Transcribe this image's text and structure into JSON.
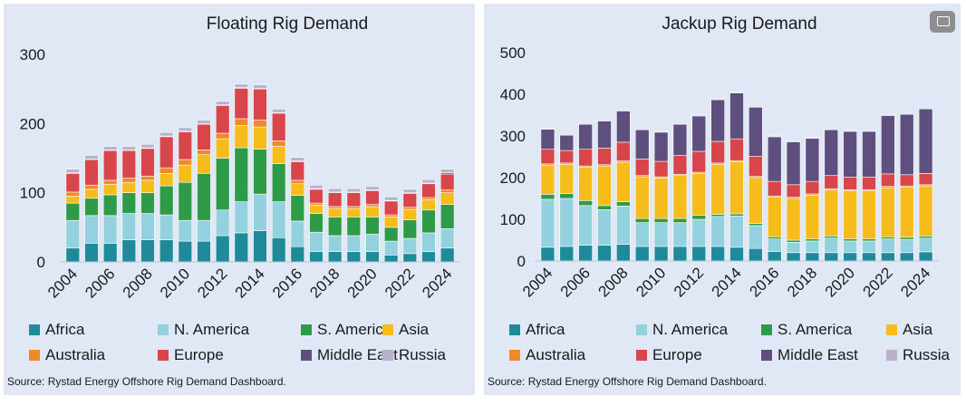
{
  "chart_data": [
    {
      "type": "bar",
      "stacked": true,
      "title": "Floating Rig Demand",
      "source": "Source: Rystad Energy Offshore Rig Demand Dashboard.",
      "categories": [
        "2004",
        "2005",
        "2006",
        "2007",
        "2008",
        "2009",
        "2010",
        "2011",
        "2012",
        "2013",
        "2014",
        "2015",
        "2016",
        "2017",
        "2018",
        "2019",
        "2020",
        "2021",
        "2022",
        "2023",
        "2024"
      ],
      "x_tick_labels": [
        "2004",
        "2006",
        "2008",
        "2010",
        "2012",
        "2014",
        "2016",
        "2018",
        "2020",
        "2022",
        "2024"
      ],
      "ylim": [
        0,
        300
      ],
      "yticks": [
        0,
        100,
        200,
        300
      ],
      "legend_position": "bottom",
      "series": [
        {
          "name": "Africa",
          "color": "#1f8a99",
          "values": [
            20,
            27,
            27,
            32,
            32,
            32,
            30,
            30,
            38,
            42,
            45,
            35,
            22,
            15,
            15,
            15,
            15,
            10,
            12,
            15,
            20
          ]
        },
        {
          "name": "N. America",
          "color": "#94d1de",
          "values": [
            40,
            40,
            40,
            38,
            38,
            36,
            30,
            30,
            37,
            45,
            53,
            52,
            37,
            28,
            23,
            23,
            25,
            20,
            22,
            27,
            28
          ]
        },
        {
          "name": "S. America",
          "color": "#2e9b48",
          "values": [
            25,
            25,
            30,
            30,
            30,
            42,
            55,
            68,
            75,
            78,
            65,
            55,
            37,
            27,
            27,
            27,
            25,
            20,
            27,
            33,
            35
          ]
        },
        {
          "name": "Asia",
          "color": "#f6bc1b",
          "values": [
            10,
            13,
            15,
            15,
            18,
            18,
            25,
            27,
            28,
            32,
            32,
            25,
            17,
            12,
            12,
            12,
            15,
            15,
            15,
            15,
            17
          ]
        },
        {
          "name": "Australia",
          "color": "#ef8a2b",
          "values": [
            6,
            6,
            6,
            6,
            6,
            8,
            8,
            7,
            8,
            10,
            10,
            8,
            5,
            3,
            3,
            3,
            3,
            3,
            3,
            3,
            4
          ]
        },
        {
          "name": "Europe",
          "color": "#d8464c",
          "values": [
            27,
            37,
            43,
            40,
            40,
            45,
            40,
            37,
            40,
            44,
            45,
            40,
            27,
            20,
            20,
            20,
            20,
            20,
            20,
            20,
            23
          ]
        },
        {
          "name": "Middle East",
          "color": "#5f4f7e",
          "values": [
            1,
            1,
            1,
            1,
            1,
            1,
            1,
            1,
            1,
            1,
            1,
            1,
            1,
            1,
            1,
            1,
            1,
            1,
            1,
            1,
            2
          ]
        },
        {
          "name": "Russia",
          "color": "#b8b2cc",
          "values": [
            5,
            5,
            5,
            5,
            5,
            5,
            5,
            5,
            5,
            5,
            5,
            5,
            5,
            5,
            5,
            5,
            5,
            5,
            5,
            5,
            5
          ]
        }
      ]
    },
    {
      "type": "bar",
      "stacked": true,
      "title": "Jackup Rig Demand",
      "source": "Source: Rystad Energy Offshore Rig Demand Dashboard.",
      "categories": [
        "2004",
        "2005",
        "2006",
        "2007",
        "2008",
        "2009",
        "2010",
        "2011",
        "2012",
        "2013",
        "2014",
        "2015",
        "2016",
        "2017",
        "2018",
        "2019",
        "2020",
        "2021",
        "2022",
        "2023",
        "2024"
      ],
      "x_tick_labels": [
        "2004",
        "2006",
        "2008",
        "2010",
        "2012",
        "2014",
        "2016",
        "2018",
        "2020",
        "2022",
        "2024"
      ],
      "ylim": [
        0,
        500
      ],
      "yticks": [
        0,
        100,
        200,
        300,
        400,
        500
      ],
      "legend_position": "bottom",
      "series": [
        {
          "name": "Africa",
          "color": "#1f8a99",
          "values": [
            33,
            35,
            38,
            38,
            40,
            35,
            35,
            35,
            35,
            35,
            33,
            30,
            23,
            20,
            20,
            20,
            20,
            20,
            20,
            20,
            22
          ]
        },
        {
          "name": "N. America",
          "color": "#94d1de",
          "values": [
            115,
            115,
            95,
            85,
            92,
            57,
            57,
            57,
            65,
            72,
            75,
            55,
            30,
            25,
            28,
            35,
            28,
            28,
            33,
            32,
            33
          ]
        },
        {
          "name": "S. America",
          "color": "#2e9b48",
          "values": [
            12,
            12,
            12,
            10,
            10,
            10,
            10,
            10,
            10,
            5,
            5,
            5,
            5,
            5,
            5,
            5,
            5,
            5,
            5,
            5,
            5
          ]
        },
        {
          "name": "Asia",
          "color": "#f6bc1b",
          "values": [
            70,
            70,
            80,
            95,
            95,
            100,
            97,
            103,
            100,
            120,
            125,
            110,
            95,
            100,
            105,
            110,
            115,
            115,
            118,
            120,
            120
          ]
        },
        {
          "name": "Australia",
          "color": "#ef8a2b",
          "values": [
            3,
            3,
            3,
            3,
            3,
            3,
            3,
            3,
            3,
            3,
            3,
            3,
            3,
            3,
            3,
            3,
            3,
            3,
            3,
            3,
            3
          ]
        },
        {
          "name": "Europe",
          "color": "#d8464c",
          "values": [
            35,
            30,
            40,
            40,
            45,
            40,
            37,
            45,
            50,
            52,
            52,
            48,
            35,
            30,
            30,
            32,
            30,
            30,
            30,
            27,
            27
          ]
        },
        {
          "name": "Middle East",
          "color": "#5f4f7e",
          "values": [
            48,
            37,
            60,
            65,
            75,
            70,
            70,
            75,
            85,
            100,
            110,
            118,
            107,
            103,
            103,
            110,
            110,
            110,
            140,
            145,
            155
          ]
        },
        {
          "name": "Russia",
          "color": "#b8b2cc",
          "values": [
            2,
            2,
            2,
            2,
            2,
            2,
            2,
            2,
            2,
            2,
            2,
            2,
            2,
            2,
            2,
            2,
            2,
            2,
            2,
            2,
            2
          ]
        }
      ]
    }
  ]
}
